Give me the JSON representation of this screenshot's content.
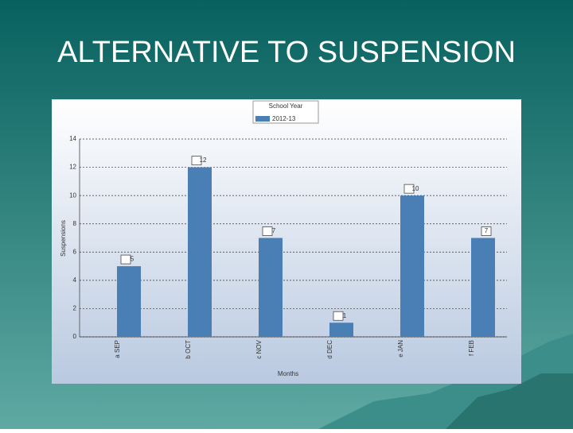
{
  "title": "ALTERNATIVE TO SUSPENSION",
  "chart_data": {
    "type": "bar",
    "legend_title": "School Year",
    "x_label": "Months",
    "y_label": "Suspensions",
    "categories": [
      "a SEP",
      "b OCT",
      "c NOV",
      "d DEC",
      "e JAN",
      "f FEB"
    ],
    "series": [
      {
        "name": "2012-13",
        "color": "#4a7fb5",
        "values": [
          5,
          12,
          7,
          1,
          10,
          7
        ]
      }
    ],
    "ylim": [
      0,
      14
    ],
    "yticks": [
      0,
      2,
      4,
      6,
      8,
      10,
      12,
      14
    ],
    "grid": true,
    "legend": "top"
  }
}
